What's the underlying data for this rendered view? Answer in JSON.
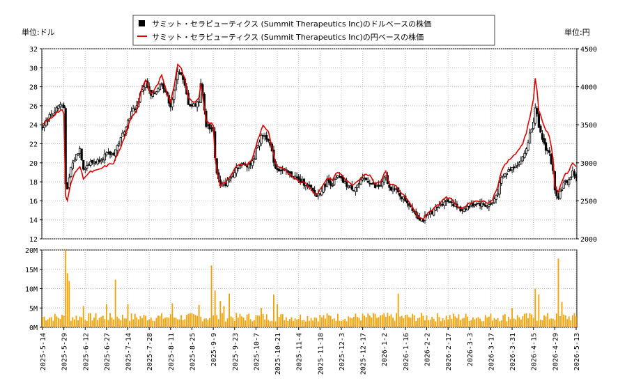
{
  "chart_data": {
    "type": "candlestick",
    "legend": {
      "placement": "top-center",
      "entries": [
        {
          "label": "サミット・セラピューティクス (Summit Therapeutics Inc)のドルベースの株価",
          "color": "#000000",
          "marker": "square"
        },
        {
          "label": "サミット・セラピューティクス (Summit Therapeutics Inc)の円ベースの株価",
          "color": "#dd0000",
          "marker": "line"
        }
      ]
    },
    "left_axis": {
      "unit_label": "単位:ドル",
      "range": [
        12,
        32
      ],
      "ticks": [
        "12",
        "14",
        "16",
        "18",
        "20",
        "22",
        "24",
        "26",
        "28",
        "30",
        "32"
      ]
    },
    "right_axis": {
      "unit_label": "単位:円",
      "range": [
        2000,
        4500
      ],
      "ticks": [
        "2000",
        "2500",
        "3000",
        "3500",
        "4000",
        "4500"
      ]
    },
    "volume_axis": {
      "range": [
        0,
        20000000
      ],
      "ticks": [
        "0M",
        "5M",
        "10M",
        "15M",
        "20M"
      ]
    },
    "x_ticks": [
      "2025-5-14",
      "2025-5-29",
      "2025-6-12",
      "2025-6-27",
      "2025-7-14",
      "2025-7-28",
      "2025-8-11",
      "2025-8-25",
      "2025-9-9",
      "2025-9-23",
      "2025-10-7",
      "2025-10-21",
      "2025-11-4",
      "2025-11-18",
      "2025-12-3",
      "2025-12-17",
      "2026-1-2",
      "2026-1-16",
      "2026-2-2",
      "2026-2-17",
      "2026-3-3",
      "2026-3-17",
      "2026-3-31",
      "2026-4-15",
      "2026-4-29",
      "2026-5-13"
    ],
    "grid": true,
    "colors": {
      "candle": "#000000",
      "yen_line": "#dd0000",
      "volume": "#f0a000",
      "grid": "#bbbbbb"
    },
    "price_keypoints_usd": [
      [
        0,
        23.8
      ],
      [
        3,
        24.8
      ],
      [
        6,
        25.3
      ],
      [
        9,
        26.0
      ],
      [
        11,
        26.2
      ],
      [
        12,
        25.8
      ],
      [
        13,
        18.0
      ],
      [
        14,
        17.0
      ],
      [
        16,
        19.5
      ],
      [
        19,
        20.8
      ],
      [
        21,
        21.5
      ],
      [
        23,
        19.5
      ],
      [
        27,
        20.0
      ],
      [
        31,
        20.2
      ],
      [
        35,
        20.8
      ],
      [
        40,
        21.0
      ],
      [
        44,
        22.5
      ],
      [
        47,
        24.0
      ],
      [
        50,
        25.3
      ],
      [
        53,
        26.0
      ],
      [
        56,
        27.8
      ],
      [
        58,
        28.4
      ],
      [
        61,
        27.0
      ],
      [
        64,
        27.6
      ],
      [
        67,
        28.5
      ],
      [
        70,
        27.0
      ],
      [
        72,
        26.0
      ],
      [
        74,
        27.4
      ],
      [
        76,
        29.8
      ],
      [
        78,
        29.2
      ],
      [
        80,
        28.0
      ],
      [
        82,
        26.3
      ],
      [
        84,
        26.0
      ],
      [
        86,
        26.2
      ],
      [
        88,
        26.5
      ],
      [
        89,
        28.5
      ],
      [
        90,
        27.0
      ],
      [
        92,
        24.0
      ],
      [
        96,
        23.5
      ],
      [
        97,
        20.5
      ],
      [
        98,
        19.0
      ],
      [
        100,
        17.5
      ],
      [
        103,
        17.8
      ],
      [
        106,
        18.5
      ],
      [
        109,
        19.5
      ],
      [
        112,
        19.8
      ],
      [
        115,
        19.8
      ],
      [
        118,
        20.0
      ],
      [
        121,
        22.0
      ],
      [
        124,
        23.0
      ],
      [
        127,
        22.5
      ],
      [
        129,
        21.0
      ],
      [
        131,
        19.5
      ],
      [
        133,
        19.3
      ],
      [
        136,
        19.2
      ],
      [
        139,
        18.8
      ],
      [
        142,
        18.5
      ],
      [
        145,
        18.0
      ],
      [
        148,
        17.8
      ],
      [
        151,
        17.2
      ],
      [
        154,
        16.5
      ],
      [
        157,
        17.2
      ],
      [
        160,
        18.0
      ],
      [
        163,
        17.8
      ],
      [
        166,
        18.5
      ],
      [
        169,
        18.0
      ],
      [
        172,
        17.5
      ],
      [
        175,
        17.3
      ],
      [
        178,
        17.8
      ],
      [
        181,
        18.3
      ],
      [
        184,
        18.0
      ],
      [
        187,
        17.4
      ],
      [
        190,
        17.6
      ],
      [
        193,
        18.5
      ],
      [
        195,
        17.3
      ],
      [
        197,
        17.4
      ],
      [
        199,
        17.0
      ],
      [
        202,
        16.4
      ],
      [
        205,
        15.9
      ],
      [
        208,
        15.2
      ],
      [
        211,
        14.3
      ],
      [
        214,
        14.0
      ],
      [
        217,
        14.6
      ],
      [
        220,
        15.0
      ],
      [
        223,
        15.5
      ],
      [
        226,
        16.0
      ],
      [
        229,
        16.0
      ],
      [
        232,
        15.5
      ],
      [
        235,
        15.0
      ],
      [
        238,
        15.3
      ],
      [
        241,
        15.5
      ],
      [
        244,
        15.8
      ],
      [
        247,
        15.6
      ],
      [
        250,
        15.5
      ],
      [
        253,
        15.8
      ],
      [
        256,
        17.0
      ],
      [
        258,
        18.3
      ],
      [
        261,
        19.0
      ],
      [
        264,
        19.5
      ],
      [
        266,
        19.8
      ],
      [
        268,
        20.0
      ],
      [
        270,
        20.5
      ],
      [
        272,
        21.5
      ],
      [
        274,
        23.0
      ],
      [
        276,
        24.5
      ],
      [
        277,
        26.0
      ],
      [
        278,
        25.0
      ],
      [
        279,
        23.5
      ],
      [
        281,
        22.5
      ],
      [
        283,
        21.5
      ],
      [
        285,
        21.0
      ],
      [
        287,
        19.0
      ],
      [
        288,
        17.0
      ],
      [
        290,
        16.5
      ],
      [
        293,
        17.8
      ],
      [
        296,
        18.2
      ],
      [
        298,
        19.0
      ],
      [
        300,
        18.5
      ]
    ],
    "yen_keypoints_jpy": [
      [
        0,
        3500
      ],
      [
        3,
        3560
      ],
      [
        6,
        3620
      ],
      [
        9,
        3680
      ],
      [
        11,
        3700
      ],
      [
        12,
        3640
      ],
      [
        13,
        2550
      ],
      [
        14,
        2500
      ],
      [
        16,
        2750
      ],
      [
        19,
        2900
      ],
      [
        21,
        2950
      ],
      [
        23,
        2800
      ],
      [
        27,
        2880
      ],
      [
        31,
        2900
      ],
      [
        35,
        2950
      ],
      [
        40,
        3000
      ],
      [
        44,
        3200
      ],
      [
        47,
        3400
      ],
      [
        50,
        3600
      ],
      [
        53,
        3700
      ],
      [
        56,
        4000
      ],
      [
        58,
        4100
      ],
      [
        61,
        3900
      ],
      [
        64,
        4000
      ],
      [
        67,
        4150
      ],
      [
        70,
        3900
      ],
      [
        72,
        3800
      ],
      [
        74,
        4000
      ],
      [
        76,
        4300
      ],
      [
        78,
        4250
      ],
      [
        80,
        4100
      ],
      [
        82,
        3850
      ],
      [
        84,
        3800
      ],
      [
        86,
        3800
      ],
      [
        88,
        3850
      ],
      [
        89,
        4050
      ],
      [
        90,
        3900
      ],
      [
        92,
        3550
      ],
      [
        96,
        3500
      ],
      [
        97,
        3100
      ],
      [
        98,
        2900
      ],
      [
        100,
        2700
      ],
      [
        103,
        2750
      ],
      [
        106,
        2850
      ],
      [
        109,
        2950
      ],
      [
        112,
        2980
      ],
      [
        115,
        2980
      ],
      [
        118,
        3050
      ],
      [
        121,
        3300
      ],
      [
        124,
        3500
      ],
      [
        127,
        3400
      ],
      [
        129,
        3200
      ],
      [
        131,
        2980
      ],
      [
        133,
        2930
      ],
      [
        136,
        2920
      ],
      [
        139,
        2850
      ],
      [
        142,
        2800
      ],
      [
        145,
        2750
      ],
      [
        148,
        2730
      ],
      [
        151,
        2650
      ],
      [
        154,
        2580
      ],
      [
        157,
        2680
      ],
      [
        160,
        2800
      ],
      [
        163,
        2780
      ],
      [
        166,
        2880
      ],
      [
        169,
        2820
      ],
      [
        172,
        2740
      ],
      [
        175,
        2700
      ],
      [
        178,
        2780
      ],
      [
        181,
        2860
      ],
      [
        184,
        2830
      ],
      [
        187,
        2730
      ],
      [
        190,
        2760
      ],
      [
        193,
        2900
      ],
      [
        195,
        2720
      ],
      [
        197,
        2730
      ],
      [
        199,
        2680
      ],
      [
        202,
        2600
      ],
      [
        205,
        2520
      ],
      [
        208,
        2420
      ],
      [
        211,
        2290
      ],
      [
        214,
        2250
      ],
      [
        217,
        2340
      ],
      [
        220,
        2400
      ],
      [
        223,
        2460
      ],
      [
        226,
        2540
      ],
      [
        229,
        2540
      ],
      [
        232,
        2460
      ],
      [
        235,
        2400
      ],
      [
        238,
        2440
      ],
      [
        241,
        2470
      ],
      [
        244,
        2510
      ],
      [
        247,
        2490
      ],
      [
        250,
        2480
      ],
      [
        253,
        2520
      ],
      [
        256,
        2700
      ],
      [
        258,
        2900
      ],
      [
        261,
        3000
      ],
      [
        264,
        3080
      ],
      [
        266,
        3130
      ],
      [
        268,
        3180
      ],
      [
        270,
        3260
      ],
      [
        272,
        3400
      ],
      [
        274,
        3600
      ],
      [
        276,
        3850
      ],
      [
        277,
        4100
      ],
      [
        278,
        3950
      ],
      [
        279,
        3700
      ],
      [
        281,
        3550
      ],
      [
        283,
        3430
      ],
      [
        285,
        3350
      ],
      [
        287,
        3050
      ],
      [
        288,
        2700
      ],
      [
        290,
        2620
      ],
      [
        293,
        2820
      ],
      [
        296,
        2900
      ],
      [
        298,
        3000
      ],
      [
        300,
        2960
      ]
    ],
    "volume_spikes_m": [
      [
        13,
        20.0
      ],
      [
        14,
        14.0
      ],
      [
        15,
        12.0
      ],
      [
        23,
        5.5
      ],
      [
        36,
        6.0
      ],
      [
        41,
        12.3
      ],
      [
        48,
        6.0
      ],
      [
        73,
        6.2
      ],
      [
        88,
        5.8
      ],
      [
        95,
        16.0
      ],
      [
        97,
        9.5
      ],
      [
        100,
        6.8
      ],
      [
        102,
        5.5
      ],
      [
        105,
        8.7
      ],
      [
        123,
        5.0
      ],
      [
        130,
        8.5
      ],
      [
        132,
        6.0
      ],
      [
        200,
        8.7
      ],
      [
        264,
        5.0
      ],
      [
        277,
        10.0
      ],
      [
        279,
        8.5
      ],
      [
        290,
        17.8
      ],
      [
        292,
        6.5
      ]
    ],
    "volume_base_m": 2.5,
    "n_sessions": 301
  }
}
